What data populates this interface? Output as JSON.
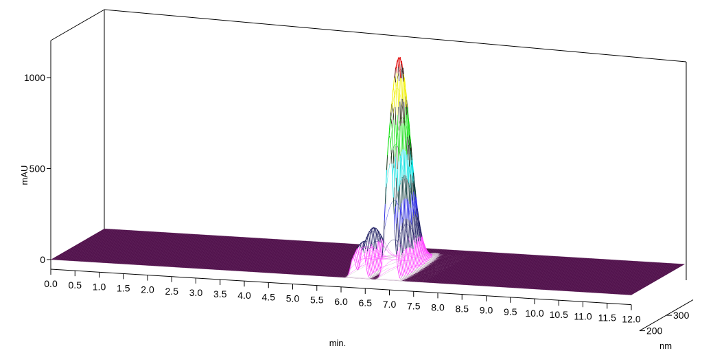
{
  "chart_data": {
    "type": "area",
    "subtype": "3d-wireframe-surface",
    "xlabel": "min.",
    "ylabel": "mAU",
    "zlabel": "nm",
    "x_ticks": [
      "0.0",
      "0.5",
      "1.0",
      "1.5",
      "2.0",
      "2.5",
      "3.0",
      "3.5",
      "4.0",
      "4.5",
      "5.0",
      "5.5",
      "6.0",
      "6.5",
      "7.0",
      "7.5",
      "8.0",
      "8.5",
      "9.0",
      "9.5",
      "10.0",
      "10.5",
      "11.0",
      "11.5",
      "12.0"
    ],
    "y_ticks": [
      "0",
      "500",
      "1000"
    ],
    "z_ticks": [
      "200",
      "300"
    ],
    "xlim": [
      0,
      12
    ],
    "ylim": [
      0,
      1100
    ],
    "zlim": [
      200,
      400
    ],
    "peaks": [
      {
        "time_min": 6.25,
        "height_mAU": 170
      },
      {
        "time_min": 6.45,
        "height_mAU": 250
      },
      {
        "time_min": 7.0,
        "height_mAU": 1200
      }
    ],
    "surface_color": "#4a0b45",
    "colors": {
      "baseline": "#4a0b45",
      "band_magenta": "#ff40ff",
      "band_blue": "#2020e0",
      "band_cyan": "#00e0e0",
      "band_green": "#10e010",
      "band_yellow": "#f0f000",
      "band_red": "#e00000"
    }
  }
}
